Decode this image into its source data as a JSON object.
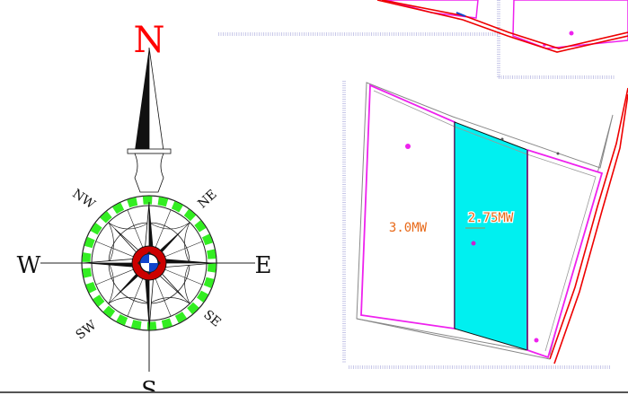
{
  "compass": {
    "north": "N",
    "south": "S",
    "east": "E",
    "west": "W",
    "northeast": "NE",
    "northwest": "NW",
    "southeast": "SE",
    "southwest": "SW",
    "colors": {
      "north_label": "#ff0000",
      "ring_dashes": "#33ee22",
      "hub_red": "#cc0000",
      "hub_blue": "#1144cc"
    }
  },
  "plots": {
    "left_block": {
      "label": "3.0MW",
      "label_color": "#e86a1a"
    },
    "middle_block": {
      "label": "2.75MW",
      "label_color": "#e86a1a",
      "fill_color": "#00f0f0"
    },
    "outline_color": "#ee22ee",
    "road_color": "#ee0000"
  }
}
